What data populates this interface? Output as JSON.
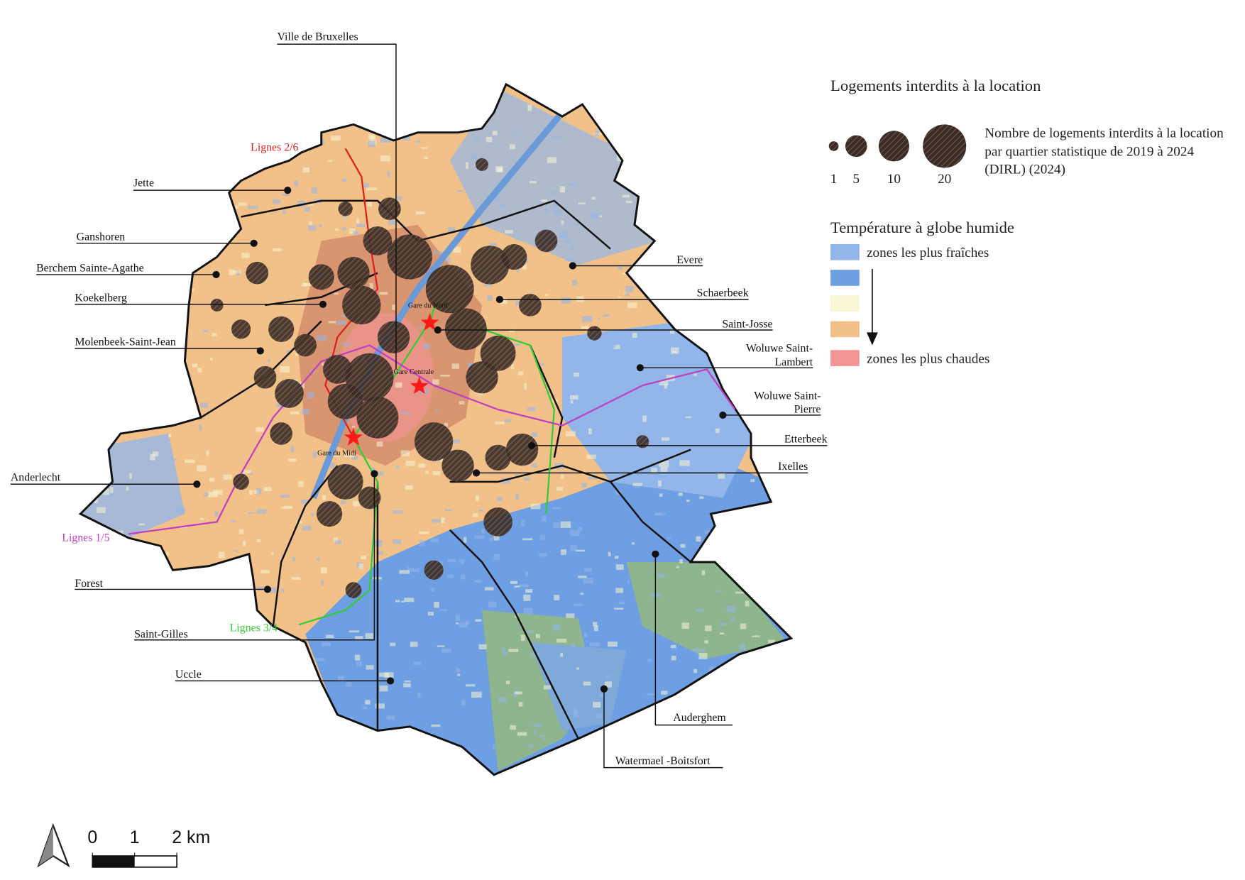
{
  "legend": {
    "title": "Logements interdits à la location",
    "size_description": "Nombre de logements interdits à la location par quartier statistique de 2019 à 2024 (DIRL) (2024)",
    "sizes": [
      1,
      5,
      10,
      20
    ],
    "temperature_title": "Température à globe humide",
    "classes": [
      {
        "color": "#93b6ea",
        "label": "zones les plus fraîches"
      },
      {
        "color": "#6f9fe3"
      },
      {
        "color": "#f8f6d4"
      },
      {
        "color": "#f2c189"
      },
      {
        "color": "#f39595",
        "label": "zones les plus chaudes"
      }
    ]
  },
  "communes": [
    "Ville de Bruxelles",
    "Jette",
    "Ganshoren",
    "Berchem Sainte-Agathe",
    "Koekelberg",
    "Molenbeek-Saint-Jean",
    "Anderlecht",
    "Forest",
    "Saint-Gilles",
    "Uccle",
    "Evere",
    "Schaerbeek",
    "Saint-Josse",
    "Woluwe Saint-Lambert",
    "Woluwe Saint-Pierre",
    "Etterbeek",
    "Ixelles",
    "Auderghem",
    "Watermael -Boitsfort"
  ],
  "lines": [
    "Lignes 2/6",
    "Lignes 1/5",
    "Lignes 3/4"
  ],
  "stations": [
    "Gare du Nord",
    "Gare Centrale",
    "Gare du Midi"
  ],
  "scale_bar": {
    "ticks": [
      0,
      1,
      {
        "value": 2,
        "label": "2 km"
      }
    ]
  }
}
